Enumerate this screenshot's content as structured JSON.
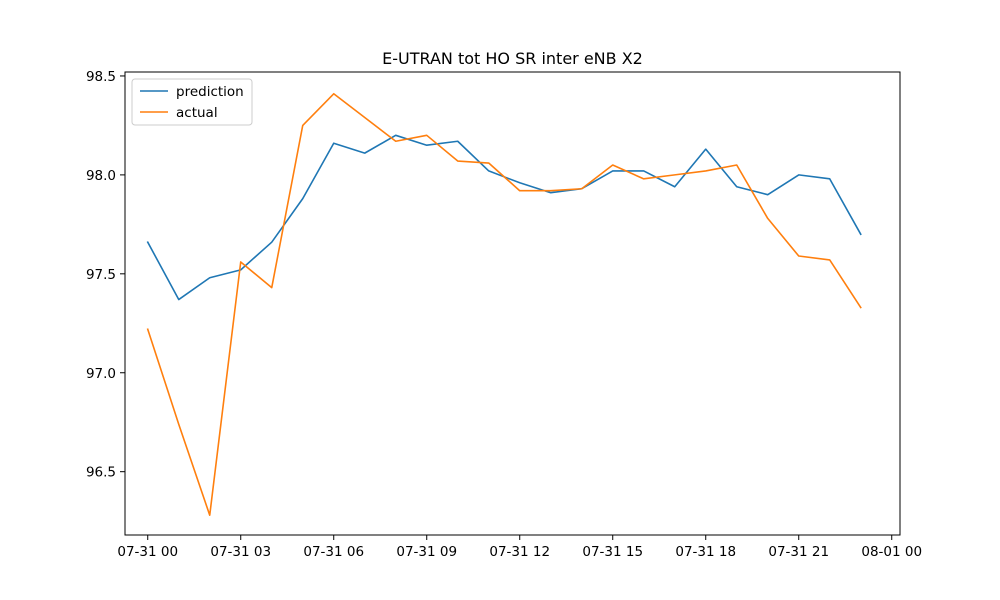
{
  "chart_data": {
    "type": "line",
    "title": "E-UTRAN tot HO SR inter eNB X2",
    "xlabel": "",
    "ylabel": "",
    "x": [
      "07-31 00:00",
      "07-31 01:00",
      "07-31 02:00",
      "07-31 03:00",
      "07-31 04:00",
      "07-31 05:00",
      "07-31 06:00",
      "07-31 07:00",
      "07-31 08:00",
      "07-31 09:00",
      "07-31 10:00",
      "07-31 11:00",
      "07-31 12:00",
      "07-31 13:00",
      "07-31 14:00",
      "07-31 15:00",
      "07-31 16:00",
      "07-31 17:00",
      "07-31 18:00",
      "07-31 19:00",
      "07-31 20:00",
      "07-31 21:00",
      "07-31 22:00",
      "07-31 23:00"
    ],
    "xlim": [
      "07-30 23:16",
      "08-01 00:16"
    ],
    "ylim": [
      96.18,
      98.52
    ],
    "x_ticks": [
      {
        "label": "07-31 00",
        "time": "07-31 00:00"
      },
      {
        "label": "07-31 03",
        "time": "07-31 03:00"
      },
      {
        "label": "07-31 06",
        "time": "07-31 06:00"
      },
      {
        "label": "07-31 09",
        "time": "07-31 09:00"
      },
      {
        "label": "07-31 12",
        "time": "07-31 12:00"
      },
      {
        "label": "07-31 15",
        "time": "07-31 15:00"
      },
      {
        "label": "07-31 18",
        "time": "07-31 18:00"
      },
      {
        "label": "07-31 21",
        "time": "07-31 21:00"
      },
      {
        "label": "08-01 00",
        "time": "08-01 00:00"
      }
    ],
    "y_ticks": [
      {
        "label": "96.5",
        "value": 96.5
      },
      {
        "label": "97.0",
        "value": 97.0
      },
      {
        "label": "97.5",
        "value": 97.5
      },
      {
        "label": "98.0",
        "value": 98.0
      },
      {
        "label": "98.5",
        "value": 98.5
      }
    ],
    "grid": false,
    "legend_position": "upper-left",
    "series": [
      {
        "name": "prediction",
        "color": "#1f77b4",
        "values": [
          97.66,
          97.37,
          97.48,
          97.52,
          97.66,
          97.88,
          98.16,
          98.11,
          98.2,
          98.15,
          98.17,
          98.02,
          97.96,
          97.91,
          97.93,
          98.02,
          98.02,
          97.94,
          98.13,
          97.94,
          97.9,
          98.0,
          97.98,
          97.7
        ]
      },
      {
        "name": "actual",
        "color": "#ff7f0e",
        "values": [
          97.22,
          96.74,
          96.28,
          97.56,
          97.43,
          98.25,
          98.41,
          98.29,
          98.17,
          98.2,
          98.07,
          98.06,
          97.92,
          97.92,
          97.93,
          98.05,
          97.98,
          98.0,
          98.02,
          98.05,
          97.78,
          97.59,
          97.57,
          97.33
        ]
      }
    ]
  }
}
